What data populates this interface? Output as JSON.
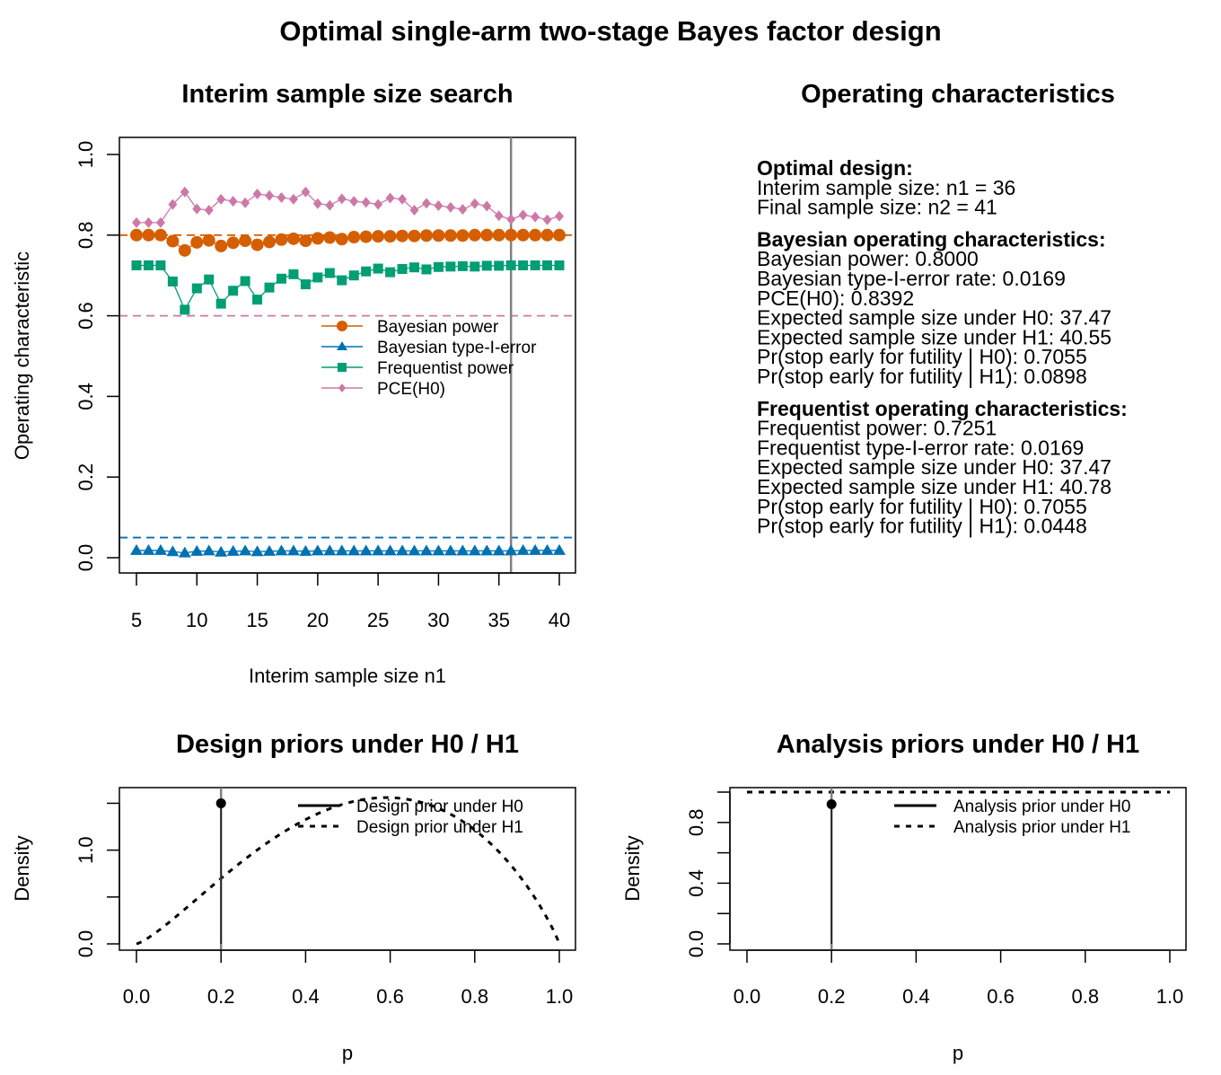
{
  "main_title": "Optimal single-arm two-stage Bayes factor design",
  "colors": {
    "bayes_power": "#D55E00",
    "bayes_t1e": "#0072B2",
    "freq_power": "#009E73",
    "pce": "#CC79A7",
    "vline": "#808080"
  },
  "chart_data": [
    {
      "type": "scatter",
      "title": "Interim sample size search",
      "xlabel": "Interim sample size n1",
      "ylabel": "Operating characteristic",
      "xlim": [
        5,
        40
      ],
      "ylim": [
        0,
        1
      ],
      "x_ticks": [
        "5",
        "10",
        "15",
        "20",
        "25",
        "30",
        "35",
        "40"
      ],
      "y_ticks": [
        "0.0",
        "0.2",
        "0.4",
        "0.6",
        "0.8",
        "1.0"
      ],
      "x": [
        5,
        6,
        7,
        8,
        9,
        10,
        11,
        12,
        13,
        14,
        15,
        16,
        17,
        18,
        19,
        20,
        21,
        22,
        23,
        24,
        25,
        26,
        27,
        28,
        29,
        30,
        31,
        32,
        33,
        34,
        35,
        36,
        37,
        38,
        39,
        40
      ],
      "series": [
        {
          "name": "Bayesian power",
          "key": "bayes_power",
          "values": [
            0.8,
            0.8,
            0.8,
            0.785,
            0.762,
            0.782,
            0.787,
            0.773,
            0.781,
            0.786,
            0.776,
            0.783,
            0.789,
            0.791,
            0.786,
            0.792,
            0.794,
            0.79,
            0.795,
            0.796,
            0.797,
            0.797,
            0.798,
            0.798,
            0.799,
            0.799,
            0.799,
            0.799,
            0.8,
            0.8,
            0.8,
            0.8,
            0.8,
            0.8,
            0.8,
            0.8
          ]
        },
        {
          "name": "Bayesian type-I-error",
          "key": "bayes_t1e",
          "values": [
            0.018,
            0.018,
            0.018,
            0.015,
            0.012,
            0.016,
            0.017,
            0.014,
            0.016,
            0.017,
            0.015,
            0.016,
            0.017,
            0.017,
            0.016,
            0.017,
            0.017,
            0.017,
            0.017,
            0.017,
            0.017,
            0.017,
            0.017,
            0.017,
            0.017,
            0.017,
            0.017,
            0.017,
            0.017,
            0.017,
            0.017,
            0.017,
            0.018,
            0.018,
            0.018,
            0.018
          ]
        },
        {
          "name": "Frequentist power",
          "key": "freq_power",
          "values": [
            0.725,
            0.725,
            0.725,
            0.685,
            0.615,
            0.668,
            0.69,
            0.63,
            0.662,
            0.686,
            0.64,
            0.67,
            0.692,
            0.703,
            0.678,
            0.695,
            0.706,
            0.688,
            0.7,
            0.71,
            0.717,
            0.708,
            0.716,
            0.72,
            0.715,
            0.721,
            0.722,
            0.723,
            0.722,
            0.724,
            0.724,
            0.725,
            0.725,
            0.725,
            0.725,
            0.725
          ]
        },
        {
          "name": "PCE(H0)",
          "key": "pce",
          "values": [
            0.831,
            0.831,
            0.831,
            0.876,
            0.907,
            0.865,
            0.862,
            0.889,
            0.884,
            0.88,
            0.902,
            0.898,
            0.893,
            0.889,
            0.907,
            0.878,
            0.874,
            0.89,
            0.884,
            0.881,
            0.876,
            0.892,
            0.889,
            0.862,
            0.879,
            0.873,
            0.869,
            0.864,
            0.878,
            0.872,
            0.848,
            0.839,
            0.85,
            0.845,
            0.838,
            0.847
          ]
        }
      ],
      "reference_lines": {
        "bayes_power_target": 0.8,
        "bayes_t1e_target": 0.05,
        "pce_target": 0.6,
        "selected_n1": 36
      },
      "legend_position": "right"
    },
    {
      "type": "line",
      "title": "Design priors under H0 / H1",
      "xlabel": "p",
      "ylabel": "Density",
      "xlim": [
        0,
        1
      ],
      "ylim": [
        0,
        1.6
      ],
      "x_ticks": [
        "0.0",
        "0.2",
        "0.4",
        "0.6",
        "0.8",
        "1.0"
      ],
      "y_ticks": [
        "0.0",
        "1.0"
      ],
      "series": [
        {
          "name": "Design prior under H0",
          "point_mass_at": 0.2,
          "height": 1.5
        },
        {
          "name": "Design prior under H1",
          "beta": [
            2.3,
            1.9
          ]
        }
      ],
      "legend_position": "top-right"
    },
    {
      "type": "line",
      "title": "Analysis priors under H0 / H1",
      "xlabel": "p",
      "ylabel": "Density",
      "xlim": [
        0,
        1
      ],
      "ylim": [
        0,
        1
      ],
      "x_ticks": [
        "0.0",
        "0.2",
        "0.4",
        "0.6",
        "0.8",
        "1.0"
      ],
      "y_ticks": [
        "0.0",
        "0.4",
        "0.8"
      ],
      "series": [
        {
          "name": "Analysis prior under H0",
          "point_mass_at": 0.2,
          "height": 0.92
        },
        {
          "name": "Analysis prior under H1",
          "constant": 1.0
        }
      ],
      "legend_position": "top-right"
    }
  ],
  "oc_panel": {
    "title": "Operating characteristics",
    "optimal_heading": "Optimal design:",
    "optimal_lines": [
      "Interim sample size: n1 = 36",
      "Final sample size: n2 = 41"
    ],
    "bayes_heading": "Bayesian operating characteristics:",
    "bayes_lines": [
      "Bayesian power: 0.8000",
      "Bayesian type-I-error rate: 0.0169",
      "PCE(H0): 0.8392",
      "Expected sample size under H0: 37.47",
      "Expected sample size under H1: 40.55",
      "Pr(stop early for futility | H0): 0.7055",
      "Pr(stop early for futility | H1): 0.0898"
    ],
    "freq_heading": "Frequentist operating characteristics:",
    "freq_lines": [
      "Frequentist power: 0.7251",
      "Frequentist type-I-error rate: 0.0169",
      "Expected sample size under H0: 37.47",
      "Expected sample size under H1: 40.78",
      "Pr(stop early for futility | H0): 0.7055",
      "Pr(stop early for futility | H1): 0.0448"
    ]
  }
}
